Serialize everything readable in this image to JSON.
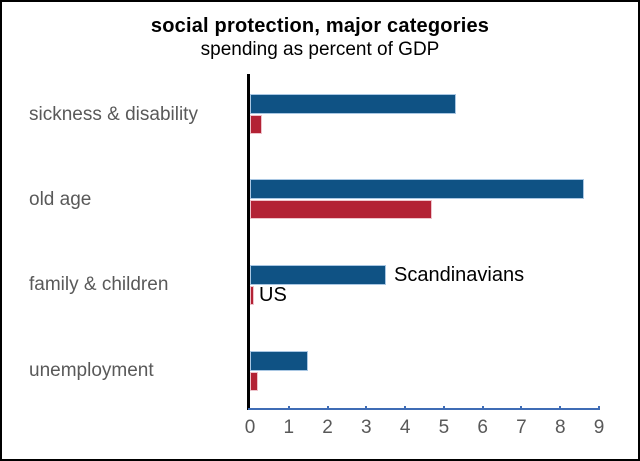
{
  "title": "social protection, major categories",
  "subtitle": "spending as percent of GDP",
  "colors": {
    "scandinavians_bar": "#0f5284",
    "scandinavians_bar_outline": "#a9c7e3",
    "us_bar": "#b32235",
    "us_bar_outline": "#eec3cb",
    "value_axis_line": "#3f6cb5",
    "category_axis_line": "#000000",
    "category_label_text": "#595959",
    "tick_label_text": "#595959",
    "annotation_text": "#000000",
    "title_text": "#000000",
    "frame_border": "#000000"
  },
  "chart_data": {
    "type": "bar",
    "orientation": "horizontal",
    "title": "social protection, major categories",
    "subtitle": "spending as percent of GDP",
    "categories": [
      "sickness & disability",
      "old age",
      "family & children",
      "unemployment"
    ],
    "series": [
      {
        "name": "Scandinavians",
        "color": "#0f5284",
        "values": [
          5.3,
          8.6,
          3.5,
          1.5
        ]
      },
      {
        "name": "US",
        "color": "#b32235",
        "values": [
          0.3,
          4.7,
          0.1,
          0.2
        ]
      }
    ],
    "xlabel": "",
    "ylabel": "",
    "xlim": [
      0,
      9
    ],
    "xticks": [
      "0",
      "1",
      "2",
      "3",
      "4",
      "5",
      "6",
      "7",
      "8",
      "9"
    ],
    "grid": false,
    "legend": {
      "position": "inline-annotation",
      "entries": [
        "Scandinavians",
        "US"
      ],
      "attached_to_category": "family & children"
    }
  }
}
